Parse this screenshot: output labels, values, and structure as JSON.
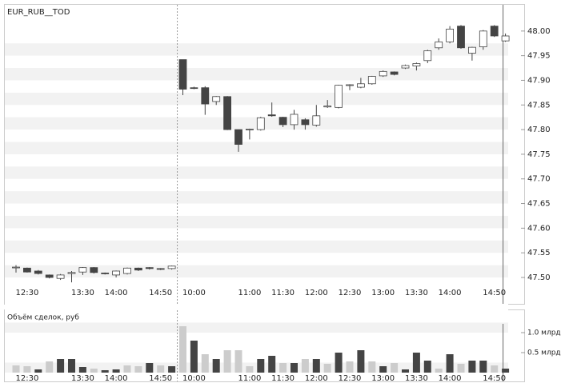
{
  "chart_data": [
    {
      "type": "candlestick",
      "title": "EUR_RUB__TOD",
      "categories": [
        null,
        "12:30",
        null,
        null,
        null,
        null,
        "13:30",
        null,
        null,
        "14:00",
        null,
        null,
        null,
        "14:50",
        null,
        null,
        "10:00",
        null,
        null,
        null,
        null,
        "11:00",
        null,
        null,
        "11:30",
        null,
        null,
        "12:00",
        null,
        null,
        "12:30",
        null,
        null,
        "13:00",
        null,
        null,
        "13:30",
        null,
        null,
        "14:00",
        null,
        null,
        null,
        "14:50",
        null
      ],
      "open": [
        47.52,
        47.519,
        47.513,
        47.505,
        47.498,
        47.508,
        47.511,
        47.52,
        47.509,
        47.505,
        47.508,
        47.519,
        47.52,
        47.518,
        47.518,
        47.942,
        47.885,
        47.885,
        47.857,
        47.867,
        47.8,
        47.8,
        47.8,
        47.83,
        47.825,
        47.81,
        47.82,
        47.809,
        47.846,
        47.845,
        47.89,
        47.886,
        47.893,
        47.909,
        47.917,
        47.925,
        47.929,
        47.94,
        47.966,
        47.978,
        48.01,
        47.955,
        47.968,
        48.01,
        47.98
      ],
      "high": [
        47.525,
        47.52,
        47.515,
        47.506,
        47.507,
        47.513,
        47.521,
        47.521,
        47.51,
        47.514,
        47.52,
        47.52,
        47.521,
        47.519,
        47.524,
        47.942,
        47.887,
        47.888,
        47.868,
        47.868,
        47.8,
        47.802,
        47.826,
        47.855,
        47.826,
        47.84,
        47.823,
        47.85,
        47.86,
        47.891,
        47.892,
        47.905,
        47.909,
        47.92,
        47.918,
        47.932,
        47.936,
        47.962,
        47.985,
        48.01,
        48.012,
        47.968,
        48.002,
        48.012,
        47.995
      ],
      "low": [
        47.51,
        47.51,
        47.506,
        47.498,
        47.495,
        47.49,
        47.505,
        47.508,
        47.506,
        47.5,
        47.506,
        47.513,
        47.516,
        47.515,
        47.516,
        47.87,
        47.882,
        47.83,
        47.85,
        47.799,
        47.755,
        47.78,
        47.798,
        47.826,
        47.805,
        47.8,
        47.8,
        47.806,
        47.844,
        47.843,
        47.88,
        47.884,
        47.891,
        47.907,
        47.91,
        47.923,
        47.92,
        47.935,
        47.962,
        47.975,
        47.964,
        47.94,
        47.962,
        47.988,
        47.978
      ],
      "close": [
        47.521,
        47.511,
        47.508,
        47.5,
        47.505,
        47.51,
        47.52,
        47.51,
        47.508,
        47.513,
        47.519,
        47.515,
        47.518,
        47.517,
        47.523,
        47.882,
        47.884,
        47.852,
        47.867,
        47.8,
        47.77,
        47.801,
        47.824,
        47.828,
        47.81,
        47.831,
        47.81,
        47.828,
        47.848,
        47.89,
        47.891,
        47.893,
        47.908,
        47.918,
        47.912,
        47.93,
        47.934,
        47.96,
        47.978,
        48.004,
        47.966,
        47.967,
        48.0,
        47.99,
        47.99
      ],
      "ylim": [
        47.487,
        48.05
      ],
      "yticks": [
        {
          "value": 47.5,
          "label": "47.50"
        },
        47.55,
        {
          "value": 47.6,
          "label": "47.60"
        },
        47.65,
        {
          "value": 47.7,
          "label": "47.70"
        },
        47.75,
        {
          "value": 47.8,
          "label": "47.80"
        },
        47.85,
        {
          "value": 47.9,
          "label": "47.90"
        },
        47.95,
        {
          "value": 48.0,
          "label": "48.00"
        }
      ],
      "up_color": "#ffffff",
      "down_color": "#444444"
    },
    {
      "type": "bar",
      "title": "Объём сделок, руб",
      "categories": [
        null,
        "12:30",
        null,
        null,
        null,
        null,
        "13:30",
        null,
        null,
        "14:00",
        null,
        null,
        null,
        "14:50",
        null,
        null,
        "10:00",
        null,
        null,
        null,
        null,
        "11:00",
        null,
        null,
        "11:30",
        null,
        null,
        "12:00",
        null,
        null,
        "12:30",
        null,
        null,
        "13:00",
        null,
        null,
        "13:30",
        null,
        null,
        "14:00",
        null,
        null,
        null,
        "14:50",
        null
      ],
      "values": [
        0.18,
        0.16,
        0.08,
        0.28,
        0.34,
        0.34,
        0.14,
        0.1,
        0.06,
        0.08,
        0.18,
        0.16,
        0.24,
        0.18,
        0.16,
        1.16,
        0.8,
        0.46,
        0.34,
        0.56,
        0.56,
        0.16,
        0.34,
        0.42,
        0.24,
        0.24,
        0.34,
        0.34,
        0.22,
        0.5,
        0.28,
        0.56,
        0.28,
        0.16,
        0.24,
        0.08,
        0.5,
        0.3,
        0.1,
        0.46,
        0.22,
        0.3,
        0.3,
        0.18,
        0.1
      ],
      "colors": [
        "#cccccc",
        "#cccccc",
        "#444444",
        "#cccccc",
        "#444444",
        "#444444",
        "#444444",
        "#cccccc",
        "#444444",
        "#444444",
        "#cccccc",
        "#cccccc",
        "#444444",
        "#cccccc",
        "#444444",
        "#cccccc",
        "#444444",
        "#cccccc",
        "#444444",
        "#cccccc",
        "#cccccc",
        "#cccccc",
        "#444444",
        "#444444",
        "#cccccc",
        "#444444",
        "#cccccc",
        "#444444",
        "#cccccc",
        "#444444",
        "#cccccc",
        "#444444",
        "#cccccc",
        "#444444",
        "#cccccc",
        "#444444",
        "#444444",
        "#444444",
        "#cccccc",
        "#444444",
        "#cccccc",
        "#444444",
        "#444444",
        "#cccccc",
        "#444444"
      ],
      "ylim": [
        0,
        1.22
      ],
      "yticks": [
        {
          "value": 0.5,
          "label": "0.5 млрд"
        },
        {
          "value": 1.0,
          "label": "1.0 млрд"
        }
      ]
    }
  ]
}
